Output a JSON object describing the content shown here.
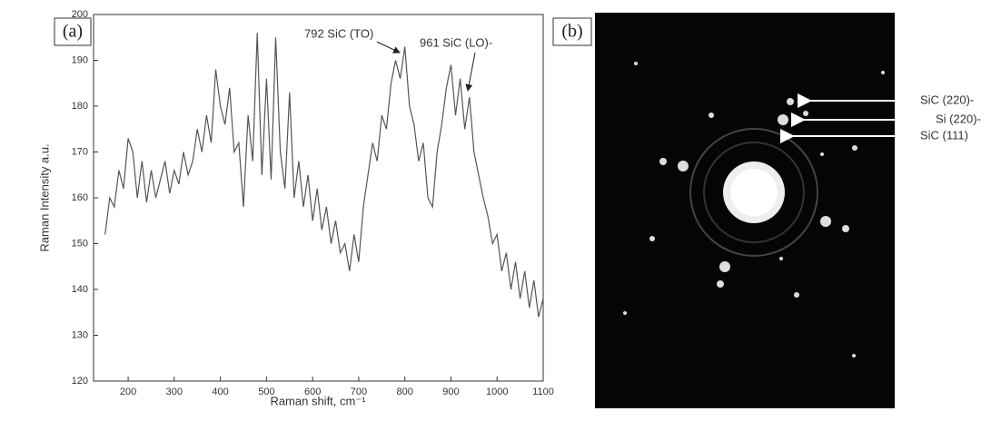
{
  "chart_data": {
    "type": "line",
    "x": [
      150,
      160,
      170,
      180,
      190,
      200,
      210,
      220,
      230,
      240,
      250,
      260,
      270,
      280,
      290,
      300,
      310,
      320,
      330,
      340,
      350,
      360,
      370,
      380,
      390,
      400,
      410,
      420,
      430,
      440,
      450,
      460,
      470,
      480,
      490,
      500,
      510,
      520,
      530,
      540,
      550,
      560,
      570,
      580,
      590,
      600,
      610,
      620,
      630,
      640,
      650,
      660,
      670,
      680,
      690,
      700,
      710,
      720,
      730,
      740,
      750,
      760,
      770,
      780,
      790,
      800,
      810,
      820,
      830,
      840,
      850,
      860,
      870,
      880,
      890,
      900,
      910,
      920,
      930,
      940,
      950,
      960,
      970,
      980,
      990,
      1000,
      1010,
      1020,
      1030,
      1040,
      1050,
      1060,
      1070,
      1080,
      1090,
      1100
    ],
    "values": [
      152,
      160,
      158,
      166,
      162,
      173,
      170,
      160,
      168,
      159,
      166,
      160,
      164,
      168,
      161,
      166,
      163,
      170,
      165,
      168,
      175,
      170,
      178,
      172,
      188,
      180,
      176,
      184,
      170,
      172,
      158,
      178,
      168,
      196,
      165,
      186,
      164,
      195,
      170,
      162,
      183,
      160,
      168,
      158,
      165,
      155,
      162,
      153,
      158,
      150,
      155,
      148,
      150,
      144,
      152,
      146,
      158,
      165,
      172,
      168,
      178,
      175,
      185,
      190,
      186,
      193,
      180,
      176,
      168,
      172,
      160,
      158,
      170,
      176,
      184,
      189,
      178,
      186,
      175,
      182,
      170,
      165,
      160,
      156,
      150,
      152,
      144,
      148,
      140,
      146,
      138,
      144,
      136,
      142,
      134,
      138
    ],
    "color": "#555555",
    "xlabel": "Raman shift, cm⁻¹",
    "ylabel": "Raman Intensity a.u.",
    "xlim": [
      125,
      1100
    ],
    "ylim": [
      120,
      200
    ],
    "xticks": [
      200,
      300,
      400,
      500,
      600,
      700,
      800,
      900,
      1000,
      1100
    ],
    "yticks": [
      120,
      130,
      140,
      150,
      160,
      170,
      180,
      190,
      200
    ],
    "annotations": [
      "792 SiC (TO)",
      "961 SiC (LO)-"
    ]
  },
  "panel_labels": [
    "(a)",
    "(b)"
  ],
  "diffraction_labels": [
    "SiC (220)-",
    "Si (220)-",
    "SiC (111)"
  ]
}
